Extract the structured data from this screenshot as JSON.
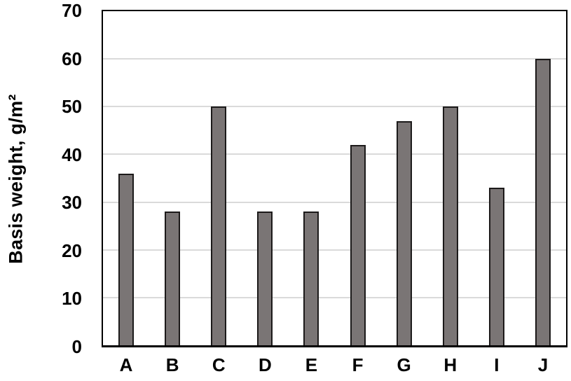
{
  "chart_data": {
    "type": "bar",
    "title": "",
    "categories": [
      "A",
      "B",
      "C",
      "D",
      "E",
      "F",
      "G",
      "H",
      "I",
      "J"
    ],
    "values": [
      36,
      28,
      50,
      28,
      28,
      42,
      47,
      50,
      33,
      60
    ],
    "xlabel": "",
    "ylabel": "Basis weight, g/m²",
    "ylim": [
      0,
      70
    ],
    "yticks": [
      0,
      10,
      20,
      30,
      40,
      50,
      60,
      70
    ],
    "grid": "horizontal",
    "legend_position": "none",
    "colors": {
      "bar_fill": "#7a7575",
      "bar_border": "#1c1a1a",
      "gridline": "#dadada",
      "axis": "#000000",
      "text": "#000000",
      "background": "#ffffff"
    }
  }
}
